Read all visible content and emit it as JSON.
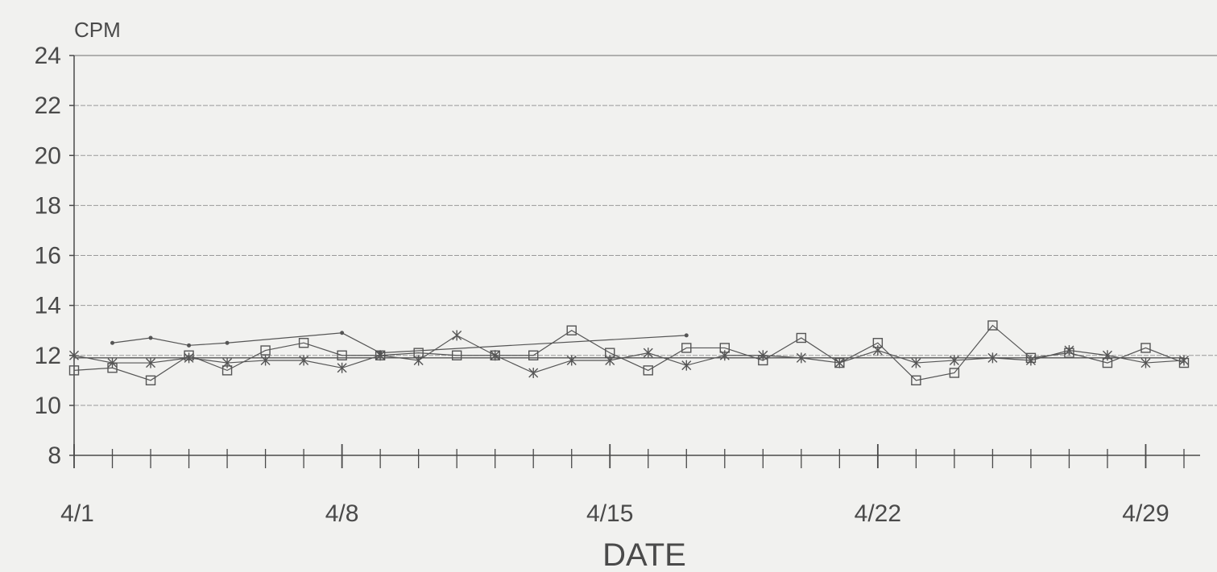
{
  "chart_data": {
    "type": "line",
    "title": "",
    "xlabel": "DATE",
    "ylabel": "CPM",
    "ylim": [
      8,
      24
    ],
    "yticks": [
      "8",
      "10",
      "12",
      "14",
      "16",
      "18",
      "20",
      "22",
      "24"
    ],
    "xlim": [
      1,
      30
    ],
    "xtick_labels": [
      {
        "x": 1,
        "label": "4/1"
      },
      {
        "x": 8,
        "label": "4/8"
      },
      {
        "x": 15,
        "label": "4/15"
      },
      {
        "x": 22,
        "label": "4/22"
      },
      {
        "x": 29,
        "label": "4/29"
      }
    ],
    "minor_ticks_every": 1,
    "grid": true,
    "legend": "none",
    "series": [
      {
        "marker": "dot",
        "x": [
          2,
          3,
          4,
          5,
          8,
          9,
          17
        ],
        "y": [
          12.5,
          12.7,
          12.4,
          12.5,
          12.9,
          12.1,
          12.8
        ]
      },
      {
        "marker": "square",
        "x": [
          1,
          2,
          3,
          4,
          5,
          6,
          7,
          8,
          9,
          10,
          11,
          12,
          13,
          14,
          15,
          16,
          17,
          18,
          19,
          20,
          21,
          22,
          23,
          24,
          25,
          26,
          27,
          28,
          29,
          30
        ],
        "y": [
          11.4,
          11.5,
          11.0,
          12.0,
          11.4,
          12.2,
          12.5,
          12.0,
          12.0,
          12.1,
          12.0,
          12.0,
          12.0,
          13.0,
          12.1,
          11.4,
          12.3,
          12.3,
          11.8,
          12.7,
          11.7,
          12.5,
          11.0,
          11.3,
          13.2,
          11.9,
          12.1,
          11.7,
          12.3,
          11.7
        ]
      },
      {
        "marker": "x",
        "x": [
          1,
          2,
          3,
          4,
          5,
          6,
          7,
          8,
          9,
          10,
          11,
          12,
          13,
          14,
          15,
          16,
          17,
          18,
          19,
          20,
          21,
          22,
          23,
          24,
          25,
          26,
          27,
          28,
          29,
          30
        ],
        "y": [
          12.0,
          11.7,
          11.7,
          11.9,
          11.7,
          11.8,
          11.8,
          11.5,
          12.0,
          11.8,
          12.8,
          12.0,
          11.3,
          11.8,
          11.8,
          12.1,
          11.6,
          12.0,
          12.0,
          11.9,
          11.7,
          12.2,
          11.7,
          11.8,
          11.9,
          11.8,
          12.2,
          12.0,
          11.7,
          11.8
        ]
      },
      {
        "marker": "none",
        "x": [
          1,
          30
        ],
        "y": [
          11.9,
          11.9
        ]
      }
    ],
    "colors": {
      "line": "#555555",
      "grid": "#9a9a9a",
      "axis": "#4a4a4a",
      "background": "#f1f1ef"
    }
  }
}
